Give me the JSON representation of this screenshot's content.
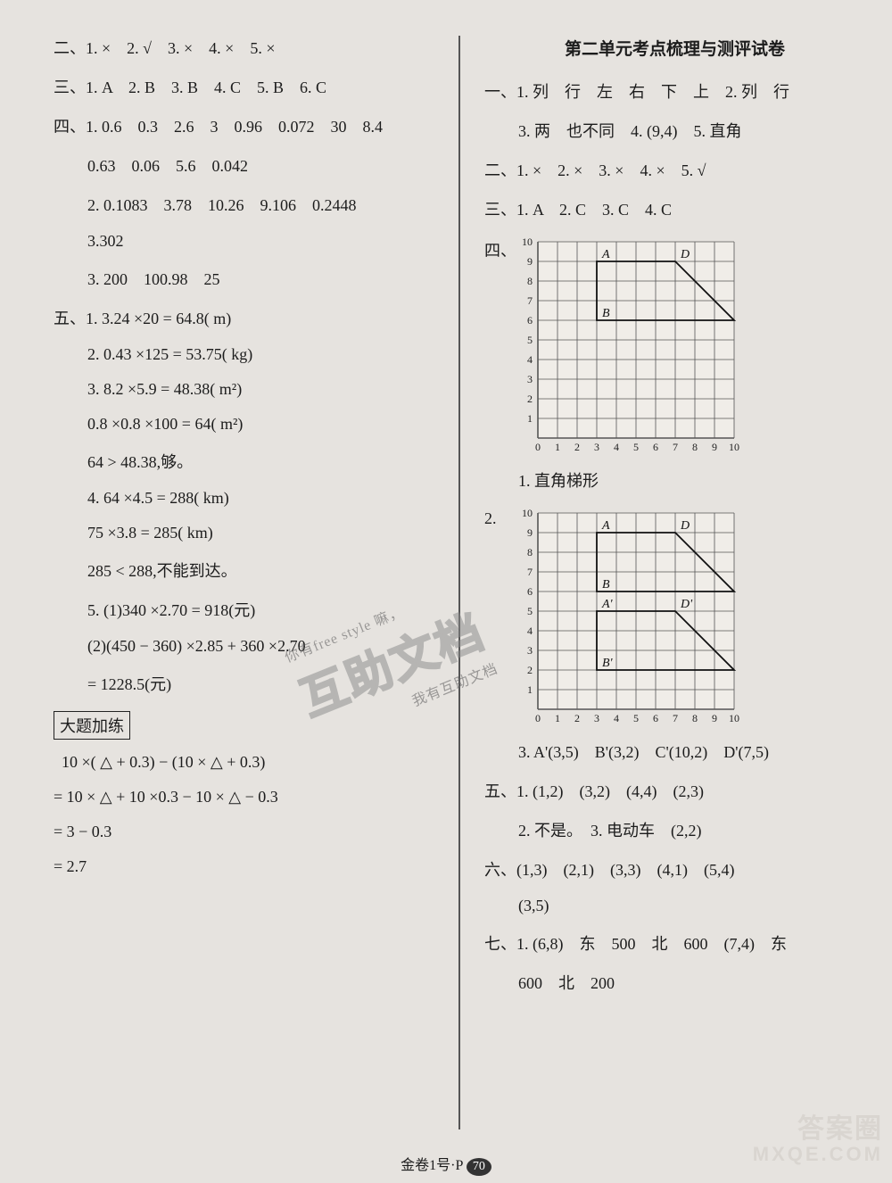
{
  "left": {
    "s2": "二、1. ×　2. √　3. ×　4. ×　5. ×",
    "s3": "三、1. A　2. B　3. B　4. C　5. B　6. C",
    "s4a": "四、1. 0.6　0.3　2.6　3　0.96　0.072　30　8.4",
    "s4b": "0.63　0.06　5.6　0.042",
    "s4c": "2. 0.1083　3.78　10.26　9.106　0.2448",
    "s4d": "3.302",
    "s4e": "3. 200　100.98　25",
    "s5a": "五、1. 3.24 ×20 = 64.8( m)",
    "s5b": "2. 0.43 ×125 = 53.75( kg)",
    "s5c": "3. 8.2 ×5.9 = 48.38( m²)",
    "s5d": "0.8 ×0.8 ×100 = 64( m²)",
    "s5e": "64 > 48.38,够。",
    "s5f": "4. 64 ×4.5 = 288( km)",
    "s5g": "75 ×3.8 = 285( km)",
    "s5h": "285 < 288,不能到达。",
    "s5i": "5. (1)340 ×2.70 = 918(元)",
    "s5j": "(2)(450 − 360) ×2.85 + 360 ×2.70",
    "s5k": "= 1228.5(元)",
    "extra_title": "大题加练",
    "e1": "  10 ×( △ + 0.3) − (10 × △ + 0.3)",
    "e2": "= 10 × △ + 10 ×0.3 − 10 × △ − 0.3",
    "e3": "= 3 − 0.3",
    "e4": "= 2.7"
  },
  "right": {
    "title": "第二单元考点梳理与测评试卷",
    "s1a": "一、1. 列　行　左　右　下　上　2. 列　行",
    "s1b": "3. 两　也不同　4. (9,4)　5. 直角",
    "s2": "二、1. ×　2. ×　3. ×　4. ×　5. √",
    "s3": "三、1. A　2. C　3. C　4. C",
    "s4_label": "四、",
    "s4_1": "1. 直角梯形",
    "s4_2_label": "2.",
    "s4_3": "3. A'(3,5)　B'(3,2)　C'(10,2)　D'(7,5)",
    "s5a": "五、1. (1,2)　(3,2)　(4,4)　(2,3)",
    "s5b": "2. 不是。　3. 电动车　(2,2)",
    "s6a": "六、(1,3)　(2,1)　(3,3)　(4,1)　(5,4)",
    "s6b": "(3,5)",
    "s7a": "七、1. (6,8)　东　500　北　600　(7,4)　东",
    "s7b": "600　北　200"
  },
  "grid1": {
    "size": 10,
    "cell": 22,
    "bg": "#f0ede8",
    "line": "#555",
    "label_font": 12,
    "points": {
      "A": {
        "x": 3,
        "y": 9
      },
      "B": {
        "x": 3,
        "y": 6
      },
      "C": {
        "x": 10,
        "y": 6
      },
      "D": {
        "x": 7,
        "y": 9
      }
    },
    "poly": [
      "A",
      "D",
      "C",
      "B"
    ]
  },
  "grid2": {
    "size": 10,
    "cell": 22,
    "bg": "#f0ede8",
    "line": "#555",
    "label_font": 12,
    "points": {
      "A": {
        "x": 3,
        "y": 9
      },
      "B": {
        "x": 3,
        "y": 6
      },
      "C": {
        "x": 10,
        "y": 6
      },
      "D": {
        "x": 7,
        "y": 9
      },
      "A'": {
        "x": 3,
        "y": 5
      },
      "B'": {
        "x": 3,
        "y": 2
      },
      "C'": {
        "x": 10,
        "y": 2
      },
      "D'": {
        "x": 7,
        "y": 5
      }
    },
    "polys": [
      [
        "A",
        "D",
        "C",
        "B"
      ],
      [
        "A'",
        "D'",
        "C'",
        "B'"
      ]
    ]
  },
  "footer": {
    "text": "金卷1号·P",
    "page": "70"
  },
  "watermark": {
    "line1": "答案圈",
    "line2": "MXQE.COM"
  },
  "stamp": {
    "big": "互助文档",
    "small1": "你有free style 嘛，",
    "small2": "我有互助文档"
  }
}
